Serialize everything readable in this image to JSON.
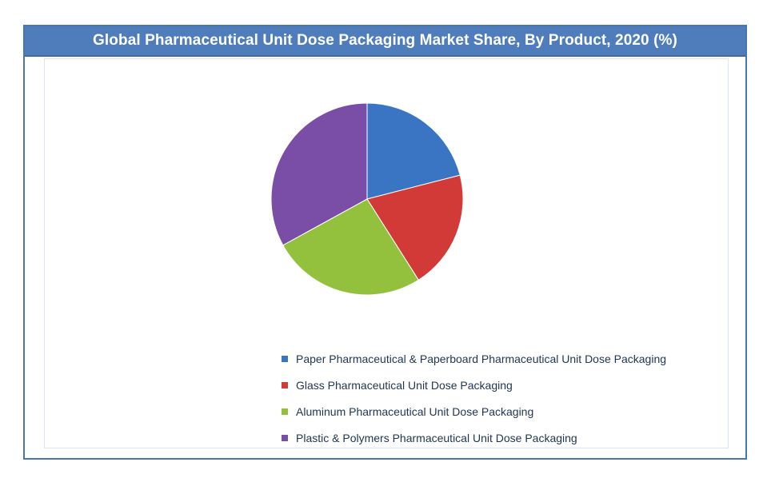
{
  "chart_data": {
    "type": "pie",
    "title": "Global Pharmaceutical Unit Dose Packaging Market Share, By Product, 2020 (%)",
    "categories": [
      "Paper Pharmaceutical & Paperboard Pharmaceutical Unit Dose Packaging",
      "Glass Pharmaceutical Unit Dose Packaging",
      "Aluminum Pharmaceutical Unit Dose Packaging",
      "Plastic & Polymers Pharmaceutical Unit Dose Packaging"
    ],
    "values": [
      21,
      20,
      26,
      33
    ],
    "colors": [
      "#3a75c4",
      "#d23a37",
      "#93c13e",
      "#7a4ea6"
    ],
    "legend_position": "bottom-right"
  }
}
